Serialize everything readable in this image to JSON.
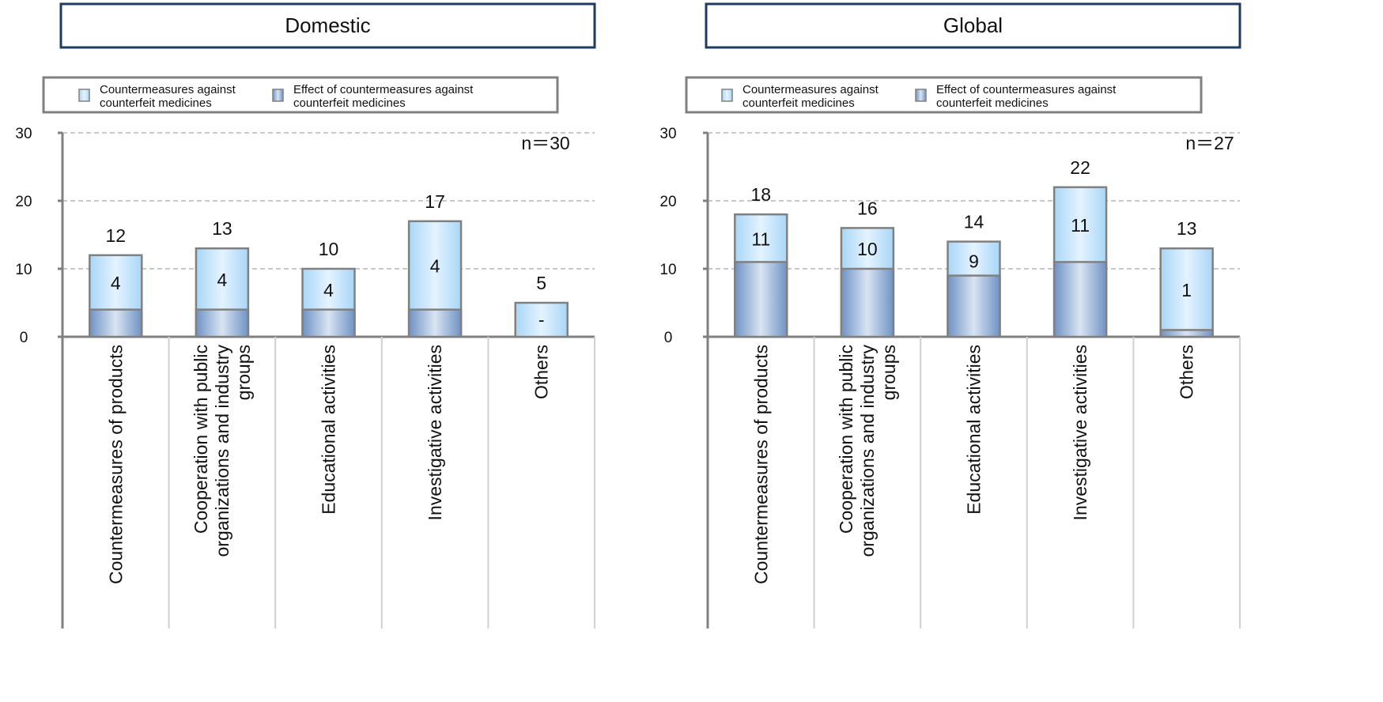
{
  "chart_data": [
    {
      "type": "bar",
      "title": "Domestic",
      "n_label": "n＝30",
      "categories": [
        "Countermeasures of products",
        "Cooperation with public organizations and industry groups",
        "Educational activities",
        "Investigative activities",
        "Others"
      ],
      "category_label_lines": [
        [
          "Countermeasures of products"
        ],
        [
          "Cooperation with public",
          "organizations and industry",
          "groups"
        ],
        [
          "Educational activities"
        ],
        [
          "Investigative activities"
        ],
        [
          "Others"
        ]
      ],
      "series": [
        {
          "name": "Countermeasures against counterfeit medicines",
          "name_lines": [
            "Countermeasures against",
            "counterfeit medicines"
          ],
          "values": [
            12,
            13,
            10,
            17,
            5
          ],
          "labels": [
            "12",
            "13",
            "10",
            "17",
            "5"
          ]
        },
        {
          "name": "Effect of countermeasures against counterfeit medicines",
          "name_lines": [
            "Effect of countermeasures against",
            "counterfeit medicines"
          ],
          "values": [
            4,
            4,
            4,
            4,
            0
          ],
          "labels": [
            "4",
            "4",
            "4",
            "4",
            "-"
          ]
        }
      ],
      "ylim": [
        0,
        30
      ],
      "yticks": [
        "0",
        "10",
        "20",
        "30"
      ],
      "grid": true,
      "legend": "top"
    },
    {
      "type": "bar",
      "title": "Global",
      "n_label": "n＝27",
      "categories": [
        "Countermeasures of products",
        "Cooperation with public organizations and industry groups",
        "Educational activities",
        "Investigative activities",
        "Others"
      ],
      "category_label_lines": [
        [
          "Countermeasures of products"
        ],
        [
          "Cooperation with public",
          "organizations and industry",
          "groups"
        ],
        [
          "Educational activities"
        ],
        [
          "Investigative activities"
        ],
        [
          "Others"
        ]
      ],
      "series": [
        {
          "name": "Countermeasures against counterfeit medicines",
          "name_lines": [
            "Countermeasures against",
            "counterfeit medicines"
          ],
          "values": [
            18,
            16,
            14,
            22,
            13
          ],
          "labels": [
            "18",
            "16",
            "14",
            "22",
            "13"
          ]
        },
        {
          "name": "Effect of countermeasures against counterfeit medicines",
          "name_lines": [
            "Effect of countermeasures against",
            "counterfeit medicines"
          ],
          "values": [
            11,
            10,
            9,
            11,
            1
          ],
          "labels": [
            "11",
            "10",
            "9",
            "11",
            "1"
          ]
        }
      ],
      "ylim": [
        0,
        30
      ],
      "yticks": [
        "0",
        "10",
        "20",
        "30"
      ],
      "grid": true,
      "legend": "top"
    }
  ],
  "colors": {
    "title_border": "#1f3b63",
    "axis": "#808080",
    "grid": "#c8c8c8",
    "bar_outline": "#808080",
    "series1_light": "#e4f3ff",
    "series1_dark": "#a9d6f7",
    "series2_light": "#d9e4f2",
    "series2_dark": "#6f92c4"
  }
}
